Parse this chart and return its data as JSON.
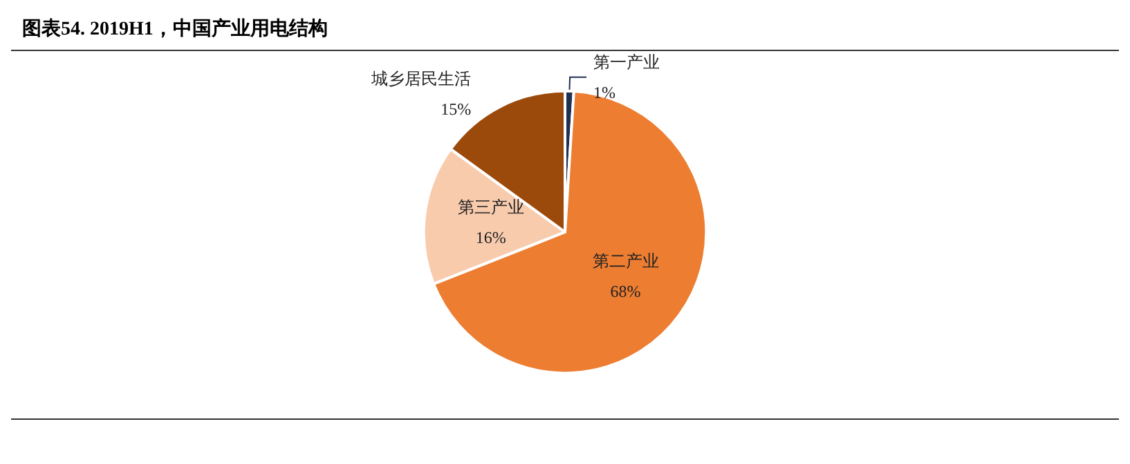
{
  "chart_data": {
    "type": "pie",
    "title": "图表54. 2019H1，中国产业用电结构",
    "categories": [
      "第一产业",
      "第二产业",
      "第三产业",
      "城乡居民生活"
    ],
    "values": [
      1,
      68,
      16,
      15
    ],
    "colors": [
      "#1f3050",
      "#ed7d31",
      "#f8cbad",
      "#9c4a0b"
    ],
    "value_labels": [
      "1%",
      "68%",
      "16%",
      "15%"
    ],
    "legend": false
  }
}
